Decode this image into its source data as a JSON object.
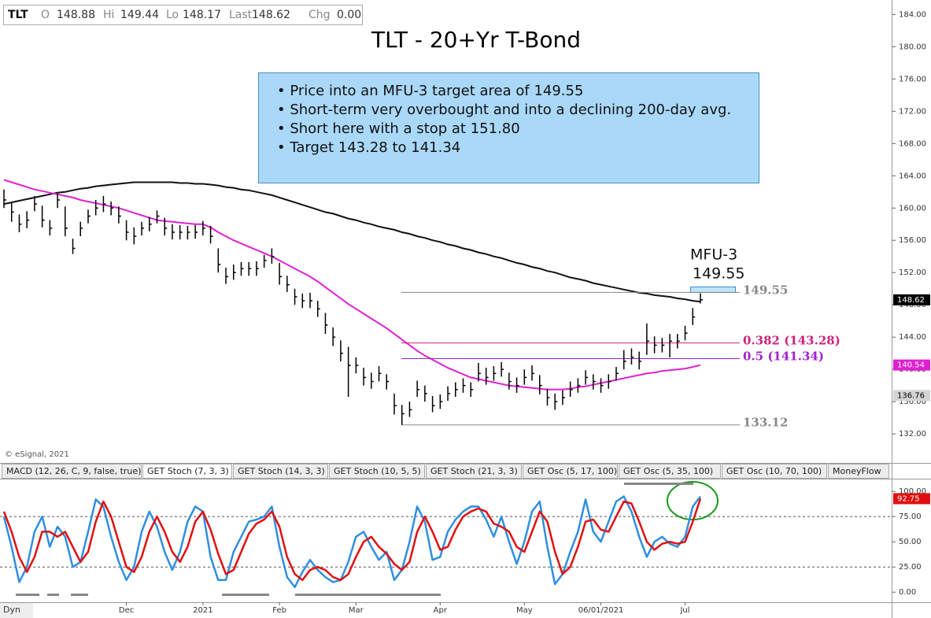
{
  "quote": {
    "symbol": "TLT",
    "fields": [
      {
        "label": "O",
        "value": "148.88"
      },
      {
        "label": "Hi",
        "value": "149.44"
      },
      {
        "label": "Lo",
        "value": "148.17"
      },
      {
        "label": "Last",
        "value": "148.62"
      },
      {
        "label": "Chg",
        "value": "0.00"
      }
    ]
  },
  "tabs": [
    "MACD (12, 26, C, 9, false, true)",
    "GET Stoch (7, 3, 3)",
    "GET Stoch (14, 3, 3)",
    "GET Stoch (10, 5, 5)",
    "GET Stoch (21, 3, 3)",
    "GET Osc (5, 17, 100)",
    "GET Osc (5, 35, 100)",
    "GET Osc (10, 70, 100)",
    "MoneyFlow"
  ],
  "footer": "Dyn",
  "chart_data": [
    {
      "type": "ohlc",
      "title": "TLT - 20+Yr T-Bond",
      "credit": "© eSignal, 2021",
      "callout": "MFU-3",
      "notes": [
        "• Price into an MFU-3 target area of 149.55",
        "• Short-term very overbought and into a declining 200-day avg.",
        "• Short here with a stop at 151.80",
        "• Target 143.28 to 141.34"
      ],
      "color": "#000000",
      "grid": false,
      "ylim": [
        128.7,
        185.3
      ],
      "yticks": [
        {
          "value": 132,
          "label": "132.00"
        },
        {
          "value": 136,
          "label": "136.00"
        },
        {
          "value": 140,
          "label": "140.00"
        },
        {
          "value": 144,
          "label": "144.00"
        },
        {
          "value": 148,
          "label": "148.00"
        },
        {
          "value": 152,
          "label": "152.00"
        },
        {
          "value": 156,
          "label": "156.00"
        },
        {
          "value": 160,
          "label": "160.00"
        },
        {
          "value": 164,
          "label": "164.00"
        },
        {
          "value": 168,
          "label": "168.00"
        },
        {
          "value": 172,
          "label": "172.00"
        },
        {
          "value": 176,
          "label": "176.00"
        },
        {
          "value": 180,
          "label": "180.00"
        },
        {
          "value": 184,
          "label": "184.00"
        }
      ],
      "high": [
        162.3,
        160.8,
        159.2,
        159.6,
        161.5,
        160.3,
        158.5,
        161.8,
        160.2,
        156.2,
        158.3,
        159.8,
        161.0,
        161.5,
        160.8,
        160.2,
        158.5,
        157.6,
        158.3,
        158.9,
        159.7,
        158.8,
        158.0,
        157.9,
        157.8,
        157.9,
        158.4,
        157.8,
        155.0,
        152.6,
        153.0,
        153.3,
        153.3,
        153.4,
        154.2,
        155.0,
        153.2,
        151.6,
        150.0,
        149.4,
        149.5,
        148.5,
        147.0,
        145.2,
        143.6,
        142.8,
        141.5,
        140.2,
        139.6,
        140.4,
        139.4,
        137.0,
        135.6,
        136.0,
        138.6,
        138.0,
        136.7,
        136.9,
        137.9,
        138.4,
        138.9,
        138.4,
        140.8,
        140.2,
        140.4,
        140.9,
        139.6,
        139.0,
        140.0,
        140.5,
        139.3,
        137.6,
        137.0,
        137.4,
        138.5,
        138.9,
        139.9,
        139.4,
        138.9,
        139.4,
        140.3,
        142.4,
        142.6,
        142.2,
        145.7,
        144.1,
        143.9,
        144.4,
        144.4,
        145.4,
        147.6,
        149.44
      ],
      "low": [
        160.0,
        158.3,
        157.0,
        157.5,
        159.6,
        157.6,
        156.6,
        160.0,
        156.5,
        154.3,
        156.5,
        158.1,
        159.1,
        159.5,
        159.1,
        158.1,
        156.0,
        155.5,
        156.6,
        157.1,
        158.1,
        156.6,
        156.1,
        156.1,
        156.1,
        156.2,
        156.6,
        155.6,
        152.0,
        150.6,
        151.1,
        151.6,
        151.6,
        151.6,
        152.6,
        153.1,
        150.5,
        149.6,
        148.0,
        147.6,
        147.6,
        146.5,
        144.4,
        142.9,
        141.0,
        136.6,
        139.5,
        138.0,
        137.6,
        138.5,
        137.5,
        134.4,
        133.12,
        134.1,
        136.6,
        136.0,
        134.7,
        135.1,
        136.1,
        136.6,
        137.1,
        136.6,
        138.5,
        138.1,
        138.6,
        139.1,
        137.5,
        137.1,
        138.1,
        138.6,
        136.9,
        135.5,
        135.0,
        135.6,
        136.6,
        137.1,
        138.1,
        137.5,
        137.1,
        137.6,
        138.6,
        140.0,
        140.6,
        140.0,
        141.8,
        142.0,
        142.1,
        141.5,
        142.6,
        143.6,
        145.5,
        148.17
      ],
      "close": [
        161,
        159.5,
        158,
        158.5,
        160.5,
        158.5,
        157.5,
        161,
        157.5,
        155,
        157.5,
        159,
        160,
        160.5,
        160,
        159,
        157,
        156.5,
        157.5,
        158,
        159,
        157.5,
        157,
        157,
        157,
        157,
        157.5,
        156.5,
        153,
        151.5,
        152,
        152.5,
        152.5,
        152.5,
        153.5,
        154,
        151.5,
        150.5,
        149,
        148.5,
        148.5,
        147.5,
        145.5,
        144,
        142,
        140.5,
        140.5,
        139,
        138.5,
        139.5,
        138.5,
        135.5,
        134.5,
        135,
        137.5,
        137,
        135.5,
        136,
        137,
        137.5,
        138,
        137.5,
        139.5,
        139,
        139.5,
        140,
        138.5,
        138,
        139,
        139.5,
        138,
        136.5,
        136,
        136.5,
        137.5,
        138,
        139,
        138.5,
        138,
        138.5,
        139.5,
        141,
        141.5,
        141,
        143.5,
        143,
        143,
        143.5,
        143.5,
        144.5,
        146.5,
        148.62
      ],
      "overlays": [
        {
          "color": "#111111",
          "values": [
            160.5,
            160.7,
            160.9,
            161.1,
            161.3,
            161.5,
            161.7,
            161.9,
            162.0,
            162.2,
            162.4,
            162.5,
            162.7,
            162.8,
            162.9,
            163.0,
            163.1,
            163.2,
            163.2,
            163.2,
            163.2,
            163.2,
            163.2,
            163.1,
            163.1,
            163.0,
            163.0,
            162.9,
            162.8,
            162.6,
            162.5,
            162.3,
            162.2,
            162.0,
            161.8,
            161.6,
            161.3,
            161.0,
            160.7,
            160.4,
            160.1,
            159.8,
            159.5,
            159.3,
            159.0,
            158.7,
            158.5,
            158.2,
            158.0,
            157.7,
            157.5,
            157.3,
            157.0,
            156.8,
            156.5,
            156.3,
            156.0,
            155.8,
            155.5,
            155.3,
            155.0,
            154.8,
            154.5,
            154.3,
            154.0,
            153.8,
            153.5,
            153.2,
            153.0,
            152.7,
            152.5,
            152.2,
            152.0,
            151.7,
            151.4,
            151.2,
            151.0,
            150.7,
            150.5,
            150.3,
            150.1,
            149.9,
            149.7,
            149.5,
            149.4,
            149.2,
            149.1,
            149.0,
            148.8,
            148.7,
            148.5,
            148.4
          ]
        },
        {
          "color": "#e020d0",
          "values": [
            163.5,
            163.2,
            162.9,
            162.6,
            162.3,
            162.1,
            161.9,
            161.7,
            161.5,
            161.3,
            161.0,
            160.8,
            160.6,
            160.4,
            160.2,
            160.0,
            159.7,
            159.4,
            159.1,
            158.8,
            158.5,
            158.4,
            158.3,
            158.2,
            158.1,
            158.0,
            158.0,
            157.6,
            157.0,
            156.5,
            156.0,
            155.6,
            155.2,
            154.8,
            154.4,
            154.0,
            153.5,
            153.0,
            152.5,
            152.0,
            151.5,
            150.9,
            150.2,
            149.5,
            148.8,
            148.1,
            147.5,
            146.9,
            146.3,
            145.7,
            145.1,
            144.4,
            143.7,
            143.0,
            142.3,
            141.7,
            141.2,
            140.7,
            140.2,
            139.8,
            139.4,
            139.0,
            138.8,
            138.6,
            138.4,
            138.2,
            138.0,
            137.9,
            137.8,
            137.7,
            137.6,
            137.5,
            137.5,
            137.5,
            137.6,
            137.8,
            137.9,
            138.1,
            138.3,
            138.5,
            138.7,
            138.9,
            139.1,
            139.3,
            139.5,
            139.6,
            139.8,
            139.9,
            140.0,
            140.1,
            140.3,
            140.54
          ]
        }
      ],
      "hlines": [
        {
          "value": 149.55,
          "color": "#888888"
        },
        {
          "value": 143.28,
          "label": "0.382 (143.28)",
          "color": "#d0207a"
        },
        {
          "value": 141.34,
          "label": "0.5 (141.34)",
          "color": "#a020d0"
        },
        {
          "value": 133.12,
          "color": "#888888"
        }
      ],
      "flags": [
        {
          "value": 136.76,
          "color": "#d4d4d4"
        }
      ]
    },
    {
      "type": "line",
      "ylim": [
        -10,
        109.5
      ],
      "yticks": [
        {
          "value": 0,
          "label": "0.00"
        },
        {
          "value": 25,
          "label": "25.00"
        },
        {
          "value": 50,
          "label": "50.00"
        },
        {
          "value": 75,
          "label": "75.00"
        },
        {
          "value": 100,
          "label": "100.00"
        }
      ],
      "reference_lines": [
        75,
        25
      ],
      "categories": [
        null,
        null,
        null,
        null,
        null,
        null,
        null,
        null,
        null,
        null,
        null,
        null,
        null,
        null,
        null,
        null,
        "Dec",
        null,
        null,
        null,
        null,
        null,
        null,
        null,
        null,
        null,
        "2021",
        null,
        null,
        null,
        null,
        null,
        null,
        null,
        null,
        null,
        "Feb",
        null,
        null,
        null,
        null,
        null,
        null,
        null,
        null,
        null,
        "Mar",
        null,
        null,
        null,
        null,
        null,
        null,
        null,
        null,
        null,
        null,
        "Apr",
        null,
        null,
        null,
        null,
        null,
        null,
        null,
        null,
        null,
        null,
        "May",
        null,
        null,
        null,
        null,
        null,
        null,
        null,
        null,
        null,
        "06/01/2021",
        null,
        null,
        null,
        null,
        null,
        null,
        null,
        null,
        null,
        null,
        "Jul",
        null,
        null
      ],
      "series": [
        {
          "color": "#2f8fdf",
          "values": [
            75,
            45,
            10,
            25,
            60,
            75,
            45,
            65,
            55,
            25,
            30,
            60,
            92,
            85,
            55,
            30,
            12,
            25,
            60,
            80,
            65,
            40,
            22,
            40,
            70,
            85,
            80,
            35,
            12,
            12,
            40,
            55,
            70,
            72,
            75,
            85,
            45,
            15,
            5,
            20,
            32,
            22,
            15,
            10,
            12,
            30,
            55,
            60,
            45,
            32,
            40,
            12,
            22,
            50,
            85,
            70,
            32,
            35,
            60,
            72,
            80,
            85,
            85,
            72,
            55,
            75,
            50,
            28,
            50,
            80,
            90,
            45,
            8,
            18,
            40,
            60,
            92,
            60,
            50,
            70,
            90,
            95,
            80,
            55,
            35,
            50,
            55,
            48,
            45,
            55,
            85,
            95
          ]
        },
        {
          "color": "#e01010",
          "values": [
            80,
            60,
            35,
            20,
            35,
            60,
            60,
            55,
            60,
            45,
            30,
            40,
            70,
            90,
            75,
            50,
            25,
            20,
            35,
            60,
            75,
            60,
            40,
            30,
            45,
            70,
            80,
            62,
            38,
            18,
            22,
            40,
            58,
            68,
            72,
            80,
            65,
            35,
            18,
            12,
            22,
            25,
            22,
            15,
            12,
            18,
            35,
            50,
            55,
            45,
            38,
            28,
            22,
            30,
            60,
            75,
            60,
            42,
            45,
            62,
            75,
            80,
            83,
            80,
            68,
            65,
            60,
            45,
            40,
            60,
            80,
            70,
            40,
            18,
            25,
            45,
            70,
            72,
            62,
            60,
            75,
            90,
            88,
            70,
            50,
            42,
            48,
            50,
            48,
            50,
            70,
            92.75
          ]
        }
      ]
    }
  ]
}
